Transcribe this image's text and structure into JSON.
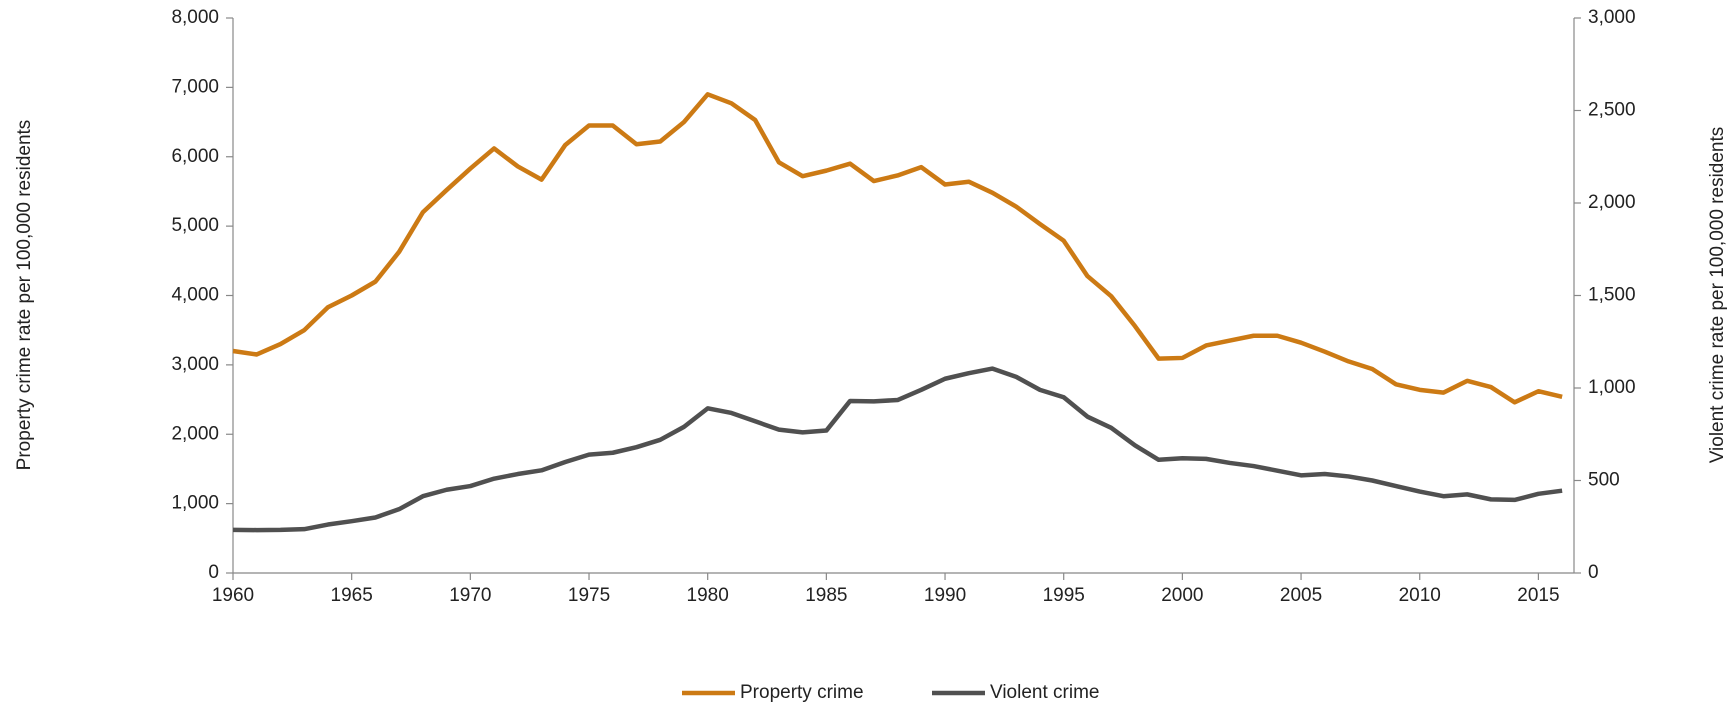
{
  "chart_data": {
    "type": "line",
    "y_label": "Property crime rate per 100,000 residents",
    "y2_label": "Violent crime rate per 100,000 residents",
    "x": [
      1960,
      1961,
      1962,
      1963,
      1964,
      1965,
      1966,
      1967,
      1968,
      1969,
      1970,
      1971,
      1972,
      1973,
      1974,
      1975,
      1976,
      1977,
      1978,
      1979,
      1980,
      1981,
      1982,
      1983,
      1984,
      1985,
      1986,
      1987,
      1988,
      1989,
      1990,
      1991,
      1992,
      1993,
      1994,
      1995,
      1996,
      1997,
      1998,
      1999,
      2000,
      2001,
      2002,
      2003,
      2004,
      2005,
      2006,
      2007,
      2008,
      2009,
      2010,
      2011,
      2012,
      2013,
      2014,
      2015,
      2016
    ],
    "series": [
      {
        "name": "Property crime",
        "color": "#cc7a14",
        "axis": "y",
        "values": [
          3200,
          3150,
          3300,
          3500,
          3830,
          4000,
          4200,
          4630,
          5200,
          5520,
          5830,
          6120,
          5860,
          5670,
          6170,
          6450,
          6450,
          6180,
          6220,
          6500,
          6900,
          6770,
          6530,
          5920,
          5720,
          5800,
          5900,
          5650,
          5730,
          5850,
          5600,
          5640,
          5480,
          5280,
          5030,
          4790,
          4280,
          3990,
          3560,
          3090,
          3100,
          3280,
          3350,
          3420,
          3420,
          3320,
          3190,
          3050,
          2940,
          2720,
          2640,
          2600,
          2770,
          2680,
          2460,
          2620,
          2540
        ]
      },
      {
        "name": "Violent crime",
        "color": "#505050",
        "axis": "y2",
        "values": [
          233,
          232,
          233,
          237,
          262,
          280,
          300,
          345,
          415,
          450,
          470,
          510,
          535,
          555,
          600,
          640,
          650,
          680,
          720,
          790,
          890,
          865,
          820,
          775,
          760,
          770,
          930,
          928,
          935,
          990,
          1050,
          1080,
          1105,
          1060,
          990,
          950,
          845,
          785,
          690,
          612,
          620,
          617,
          595,
          578,
          553,
          528,
          535,
          522,
          500,
          470,
          440,
          415,
          425,
          398,
          395,
          428,
          445
        ]
      }
    ],
    "xlim": [
      1960,
      2016.5
    ],
    "xticks": [
      1960,
      1965,
      1970,
      1975,
      1980,
      1985,
      1990,
      1995,
      2000,
      2005,
      2010,
      2015
    ],
    "ylim": [
      0,
      8000
    ],
    "yticks": [
      0,
      {
        "value": 1000,
        "label": "1,000"
      },
      {
        "value": 2000,
        "label": "2,000"
      },
      {
        "value": 3000,
        "label": "3,000"
      },
      {
        "value": 4000,
        "label": "4,000"
      },
      {
        "value": 5000,
        "label": "5,000"
      },
      {
        "value": 6000,
        "label": "6,000"
      },
      {
        "value": 7000,
        "label": "7,000"
      },
      {
        "value": 8000,
        "label": "8,000"
      }
    ],
    "y2lim": [
      0,
      3000
    ],
    "y2ticks": [
      0,
      500,
      {
        "value": 1000,
        "label": "1,000"
      },
      {
        "value": 1500,
        "label": "1,500"
      },
      {
        "value": 2000,
        "label": "2,000"
      },
      {
        "value": 2500,
        "label": "2,500"
      },
      {
        "value": 3000,
        "label": "3,000"
      }
    ],
    "legend": "bottom"
  }
}
